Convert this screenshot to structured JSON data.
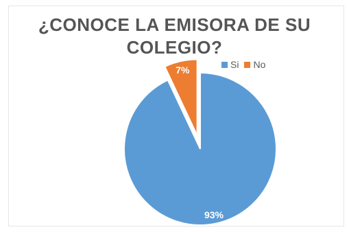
{
  "chart_data": {
    "type": "pie",
    "title_line1": "¿CONOCE LA EMISORA DE SU",
    "title_line2": "COLEGIO?",
    "categories": [
      "Si",
      "No"
    ],
    "values": [
      93,
      7
    ],
    "value_labels": [
      "93%",
      "7%"
    ],
    "colors": [
      "#5b9bd5",
      "#ed7d31"
    ],
    "legend_position": "top-right",
    "exploded_slice": "No"
  }
}
